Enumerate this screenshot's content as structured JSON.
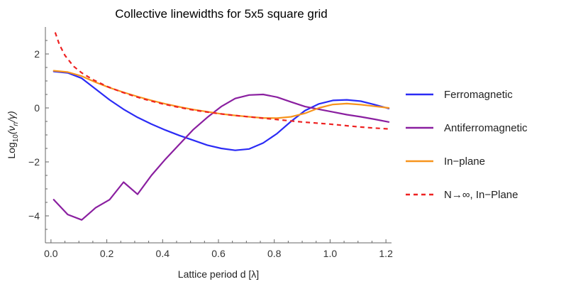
{
  "chart_data": {
    "type": "line",
    "title": "Collective linewidths for 5x5 square grid",
    "xlabel": "Lattice period d [λ]",
    "ylabel_prefix": "Log",
    "ylabel_sub": "10",
    "ylabel_rest": "(ν",
    "ylabel_sub2": "n",
    "ylabel_tail": "/γ)",
    "xlim": [
      -0.02,
      1.22
    ],
    "ylim": [
      -5.0,
      3.0
    ],
    "x_ticks": [
      0.0,
      0.2,
      0.4,
      0.6,
      0.8,
      1.0,
      1.2
    ],
    "x_tick_labels": [
      "0.0",
      "0.2",
      "0.4",
      "0.6",
      "0.8",
      "1.0",
      "1.2"
    ],
    "y_ticks": [
      -4,
      -2,
      0,
      2
    ],
    "y_tick_labels": [
      "−4",
      "−2",
      "0",
      "2"
    ],
    "grid": false,
    "legend_position": "right",
    "series": [
      {
        "name": "Ferromagnetic",
        "color": "#2b2bf5",
        "dash": "solid",
        "x": [
          0.01,
          0.06,
          0.11,
          0.16,
          0.21,
          0.26,
          0.31,
          0.36,
          0.41,
          0.46,
          0.51,
          0.56,
          0.61,
          0.66,
          0.71,
          0.76,
          0.81,
          0.86,
          0.91,
          0.96,
          1.01,
          1.06,
          1.11,
          1.16,
          1.21
        ],
        "y": [
          1.35,
          1.3,
          1.1,
          0.7,
          0.3,
          -0.05,
          -0.35,
          -0.6,
          -0.82,
          -1.02,
          -1.2,
          -1.38,
          -1.5,
          -1.57,
          -1.52,
          -1.3,
          -0.95,
          -0.5,
          -0.1,
          0.15,
          0.28,
          0.3,
          0.25,
          0.12,
          -0.02
        ]
      },
      {
        "name": "Antiferromagnetic",
        "color": "#8a1fa0",
        "dash": "solid",
        "x": [
          0.01,
          0.06,
          0.11,
          0.16,
          0.21,
          0.26,
          0.31,
          0.36,
          0.41,
          0.46,
          0.51,
          0.56,
          0.61,
          0.66,
          0.71,
          0.76,
          0.81,
          0.86,
          0.91,
          0.96,
          1.01,
          1.06,
          1.11,
          1.16,
          1.21
        ],
        "y": [
          -3.4,
          -3.95,
          -4.15,
          -3.7,
          -3.4,
          -2.75,
          -3.2,
          -2.5,
          -1.9,
          -1.35,
          -0.8,
          -0.35,
          0.05,
          0.35,
          0.48,
          0.5,
          0.4,
          0.22,
          0.05,
          -0.05,
          -0.15,
          -0.25,
          -0.33,
          -0.42,
          -0.52
        ]
      },
      {
        "name": "In−plane",
        "color": "#f7941d",
        "dash": "solid",
        "x": [
          0.01,
          0.06,
          0.11,
          0.16,
          0.21,
          0.26,
          0.31,
          0.36,
          0.41,
          0.46,
          0.51,
          0.56,
          0.61,
          0.66,
          0.71,
          0.76,
          0.81,
          0.86,
          0.91,
          0.96,
          1.01,
          1.06,
          1.11,
          1.16,
          1.21
        ],
        "y": [
          1.38,
          1.33,
          1.18,
          0.95,
          0.75,
          0.58,
          0.42,
          0.28,
          0.15,
          0.04,
          -0.06,
          -0.14,
          -0.22,
          -0.28,
          -0.33,
          -0.37,
          -0.38,
          -0.33,
          -0.2,
          0.0,
          0.13,
          0.16,
          0.12,
          0.06,
          0.0
        ]
      },
      {
        "name": "N→∞, In−Plane",
        "color": "#ee2222",
        "dash": "dashed",
        "x": [
          0.015,
          0.03,
          0.05,
          0.08,
          0.11,
          0.15,
          0.2,
          0.25,
          0.3,
          0.35,
          0.4,
          0.45,
          0.5,
          0.55,
          0.6,
          0.65,
          0.7,
          0.75,
          0.8,
          0.85,
          0.9,
          0.95,
          1.0,
          1.05,
          1.1,
          1.15,
          1.21
        ],
        "y": [
          2.8,
          2.35,
          1.95,
          1.55,
          1.3,
          1.05,
          0.8,
          0.6,
          0.43,
          0.28,
          0.15,
          0.04,
          -0.06,
          -0.14,
          -0.21,
          -0.27,
          -0.32,
          -0.37,
          -0.42,
          -0.47,
          -0.52,
          -0.56,
          -0.6,
          -0.65,
          -0.7,
          -0.74,
          -0.78
        ]
      }
    ]
  }
}
